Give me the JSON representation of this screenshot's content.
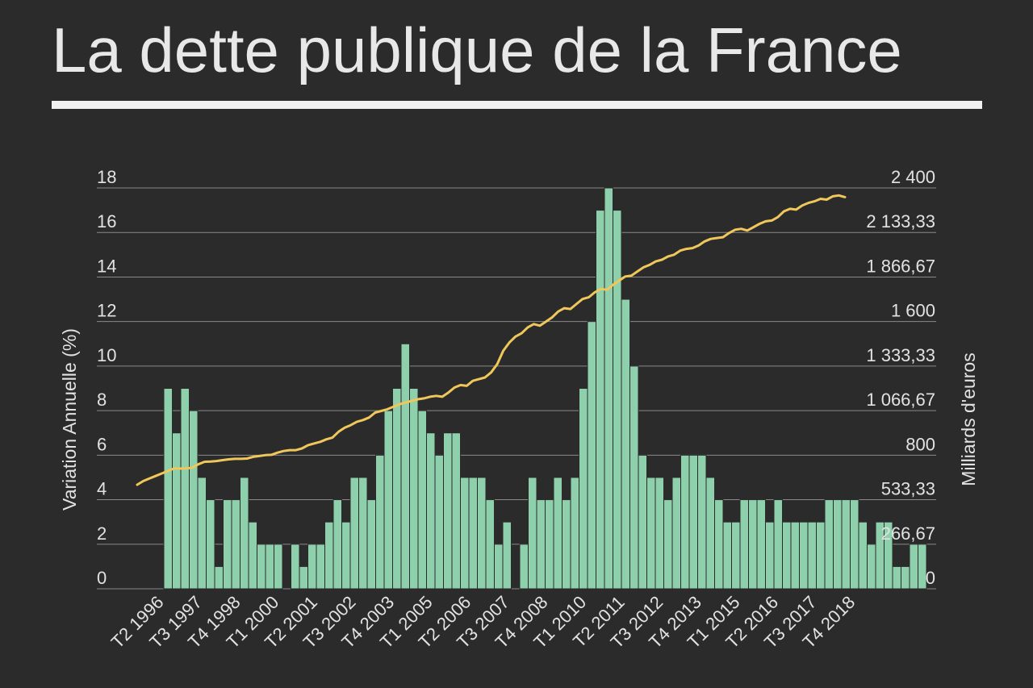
{
  "page": {
    "title": "La dette publique de la France"
  },
  "chart_data": {
    "type": "bar",
    "ylabel": "Variation Annuelle (%)",
    "y2label": "Milliards d'euros",
    "ylim": [
      0,
      18
    ],
    "y2lim": [
      0,
      2400
    ],
    "y_ticks": [
      "0",
      "2",
      "4",
      "6",
      "8",
      "10",
      "12",
      "14",
      "16",
      "18"
    ],
    "y2_ticks": [
      "0",
      "266,67",
      "533,33",
      "800",
      "1 066,67",
      "1 333,33",
      "1 600",
      "1 866,67",
      "2 133,33",
      "2 400"
    ],
    "x_tick_labels": [
      "T2 1996",
      "T3 1997",
      "T4 1998",
      "T1 2000",
      "T2 2001",
      "T3 2002",
      "T4 2003",
      "T1 2005",
      "T2 2006",
      "T3 2007",
      "T4 2008",
      "T1 2010",
      "T2 2011",
      "T3 2012",
      "T4 2013",
      "T1 2015",
      "T2 2016",
      "T3 2017",
      "T4 2018"
    ],
    "grid": true,
    "colors": {
      "bars": "#8fd0ac",
      "line": "#f0c75a",
      "grid": "#8a8a8a"
    },
    "series": [
      {
        "type": "bar",
        "axis": "left",
        "values": [
          9,
          7,
          9,
          8,
          5,
          4,
          1,
          4,
          4,
          5,
          3,
          2,
          2,
          2,
          0,
          2,
          1,
          2,
          2,
          3,
          4,
          3,
          5,
          5,
          4,
          6,
          8,
          9,
          11,
          9,
          8,
          7,
          6,
          7,
          7,
          5,
          5,
          5,
          4,
          2,
          3,
          0,
          2,
          5,
          4,
          4,
          5,
          4,
          5,
          9,
          12,
          17,
          18,
          17,
          13,
          10,
          6,
          5,
          5,
          4,
          5,
          6,
          6,
          6,
          5,
          4,
          3,
          3,
          4,
          4,
          4,
          3,
          4,
          3,
          3,
          3,
          3,
          3,
          4,
          4,
          4,
          4,
          3,
          2,
          3,
          3,
          1,
          1,
          2,
          2
        ]
      },
      {
        "type": "line",
        "axis": "right",
        "values": [
          623,
          645,
          660,
          675,
          690,
          705,
          720,
          720,
          720,
          725,
          745,
          760,
          762,
          765,
          770,
          775,
          778,
          778,
          780,
          790,
          795,
          800,
          802,
          815,
          825,
          830,
          830,
          840,
          860,
          870,
          880,
          895,
          905,
          940,
          965,
          980,
          1000,
          1010,
          1025,
          1055,
          1065,
          1075,
          1090,
          1105,
          1115,
          1125,
          1135,
          1140,
          1150,
          1155,
          1150,
          1175,
          1205,
          1220,
          1215,
          1245,
          1255,
          1265,
          1295,
          1345,
          1425,
          1475,
          1510,
          1530,
          1565,
          1585,
          1575,
          1600,
          1625,
          1660,
          1680,
          1675,
          1705,
          1735,
          1745,
          1775,
          1795,
          1790,
          1820,
          1845,
          1870,
          1875,
          1900,
          1925,
          1940,
          1960,
          1970,
          1990,
          2000,
          2025,
          2035,
          2040,
          2055,
          2080,
          2095,
          2100,
          2105,
          2130,
          2150,
          2155,
          2145,
          2165,
          2185,
          2200,
          2205,
          2225,
          2260,
          2275,
          2270,
          2295,
          2310,
          2320,
          2335,
          2330,
          2350,
          2355,
          2345
        ]
      }
    ]
  }
}
